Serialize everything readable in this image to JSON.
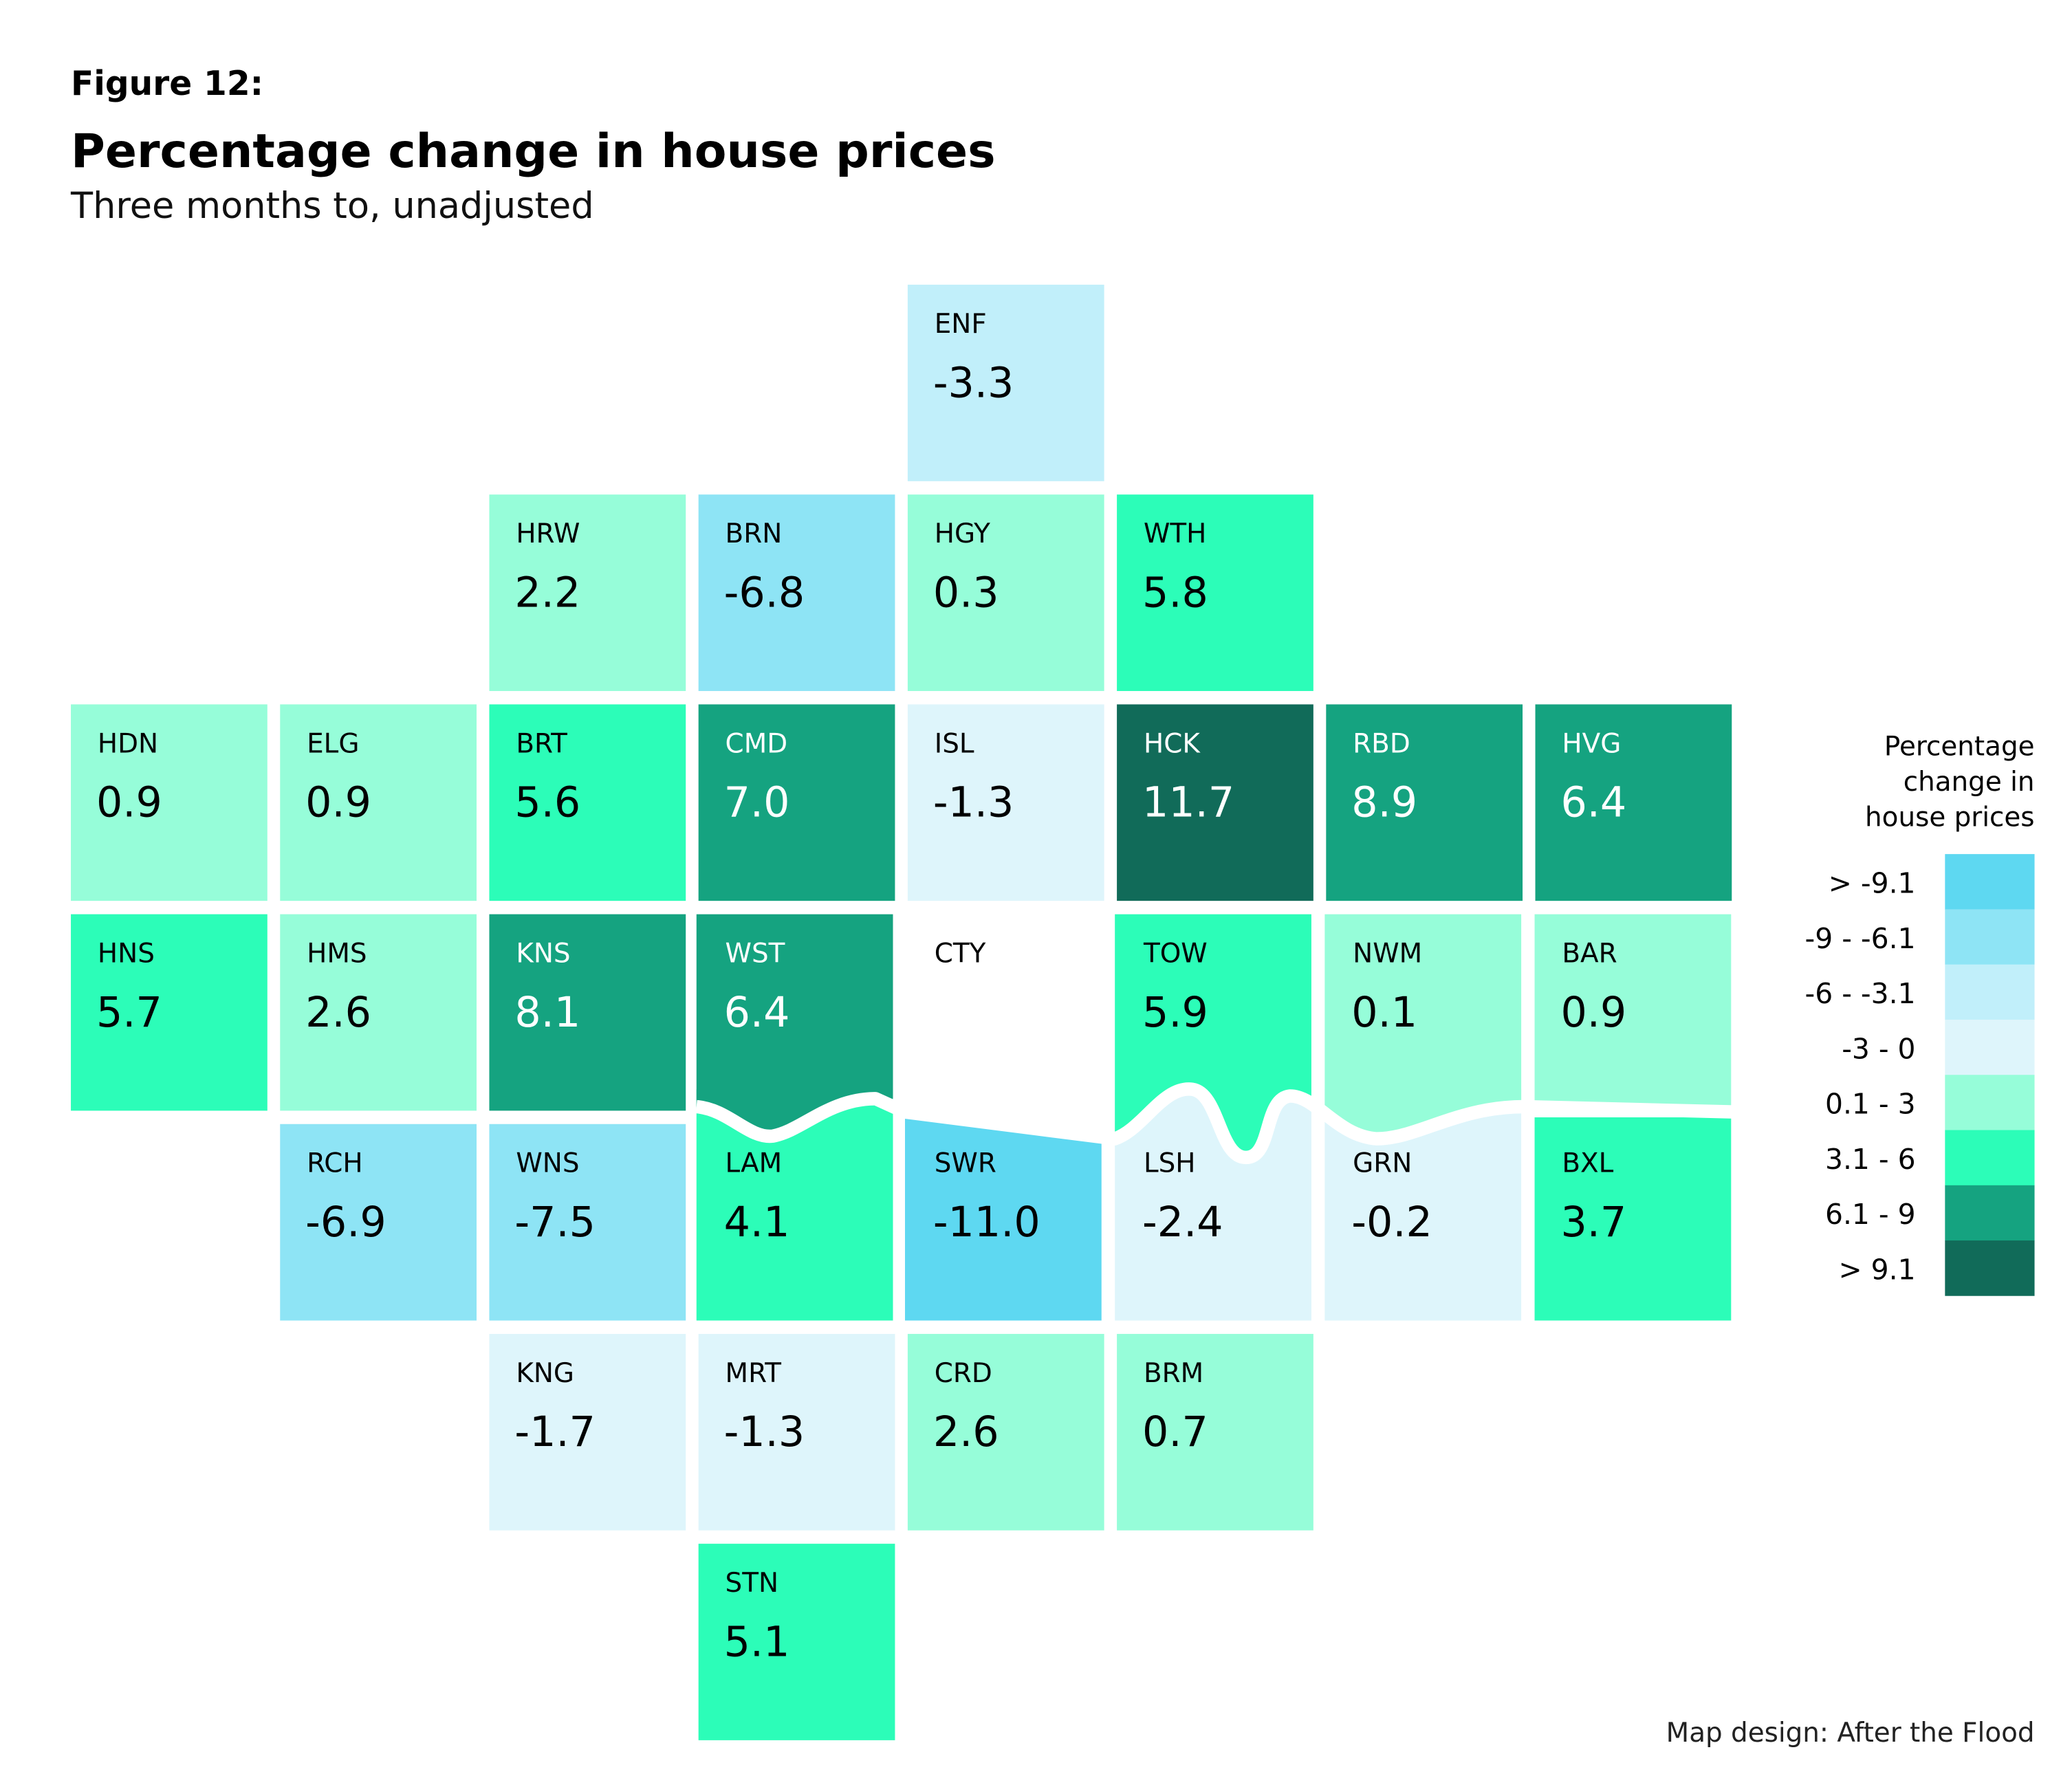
{
  "figure_label": "Figure 12:",
  "title": "Percentage change in house prices",
  "subtitle": "Three months to, unadjusted",
  "credit": "Map design: After the Flood",
  "chart_data": {
    "type": "tile-map",
    "tiles": [
      {
        "code": "ENF",
        "value": "-3.3",
        "row": 0,
        "col": 4
      },
      {
        "code": "HRW",
        "value": "2.2",
        "row": 1,
        "col": 2
      },
      {
        "code": "BRN",
        "value": "-6.8",
        "row": 1,
        "col": 3
      },
      {
        "code": "HGY",
        "value": "0.3",
        "row": 1,
        "col": 4
      },
      {
        "code": "WTH",
        "value": "5.8",
        "row": 1,
        "col": 5
      },
      {
        "code": "HDN",
        "value": "0.9",
        "row": 2,
        "col": 0
      },
      {
        "code": "ELG",
        "value": "0.9",
        "row": 2,
        "col": 1
      },
      {
        "code": "BRT",
        "value": "5.6",
        "row": 2,
        "col": 2
      },
      {
        "code": "CMD",
        "value": "7.0",
        "row": 2,
        "col": 3
      },
      {
        "code": "ISL",
        "value": "-1.3",
        "row": 2,
        "col": 4
      },
      {
        "code": "HCK",
        "value": "11.7",
        "row": 2,
        "col": 5
      },
      {
        "code": "RBD",
        "value": "8.9",
        "row": 2,
        "col": 6
      },
      {
        "code": "HVG",
        "value": "6.4",
        "row": 2,
        "col": 7
      },
      {
        "code": "HNS",
        "value": "5.7",
        "row": 3,
        "col": 0
      },
      {
        "code": "HMS",
        "value": "2.6",
        "row": 3,
        "col": 1
      },
      {
        "code": "KNS",
        "value": "8.1",
        "row": 3,
        "col": 2
      },
      {
        "code": "WST",
        "value": "6.4",
        "row": 3,
        "col": 3
      },
      {
        "code": "CTY",
        "value": null,
        "row": 3,
        "col": 4
      },
      {
        "code": "TOW",
        "value": "5.9",
        "row": 3,
        "col": 5
      },
      {
        "code": "NWM",
        "value": "0.1",
        "row": 3,
        "col": 6
      },
      {
        "code": "BAR",
        "value": "0.9",
        "row": 3,
        "col": 7
      },
      {
        "code": "RCH",
        "value": "-6.9",
        "row": 4,
        "col": 1
      },
      {
        "code": "WNS",
        "value": "-7.5",
        "row": 4,
        "col": 2
      },
      {
        "code": "LAM",
        "value": "4.1",
        "row": 4,
        "col": 3
      },
      {
        "code": "SWR",
        "value": "-11.0",
        "row": 4,
        "col": 4
      },
      {
        "code": "LSH",
        "value": "-2.4",
        "row": 4,
        "col": 5
      },
      {
        "code": "GRN",
        "value": "-0.2",
        "row": 4,
        "col": 6
      },
      {
        "code": "BXL",
        "value": "3.7",
        "row": 4,
        "col": 7
      },
      {
        "code": "KNG",
        "value": "-1.7",
        "row": 5,
        "col": 2
      },
      {
        "code": "MRT",
        "value": "-1.3",
        "row": 5,
        "col": 3
      },
      {
        "code": "CRD",
        "value": "2.6",
        "row": 5,
        "col": 4
      },
      {
        "code": "BRM",
        "value": "0.7",
        "row": 5,
        "col": 5
      },
      {
        "code": "STN",
        "value": "5.1",
        "row": 6,
        "col": 3
      }
    ],
    "legend": {
      "title_lines": [
        "Percentage",
        "change in",
        "house prices"
      ],
      "bins": [
        {
          "label": "> -9.1",
          "min": -99,
          "max": -9.05,
          "color": "#5ed8f1"
        },
        {
          "label": "-9 - -6.1",
          "min": -9.05,
          "max": -6.05,
          "color": "#8ee4f5"
        },
        {
          "label": "-6 - -3.1",
          "min": -6.05,
          "max": -3.05,
          "color": "#c1effa"
        },
        {
          "label": "-3 - 0",
          "min": -3.05,
          "max": 0.05,
          "color": "#def5fb"
        },
        {
          "label": "0.1 - 3",
          "min": 0.05,
          "max": 3.05,
          "color": "#96fdd9"
        },
        {
          "label": "3.1 - 6",
          "min": 3.05,
          "max": 6.05,
          "color": "#2cfdb8"
        },
        {
          "label": "6.1 - 9",
          "min": 6.05,
          "max": 9.05,
          "color": "#15a380"
        },
        {
          "label": "> 9.1",
          "min": 9.05,
          "max": 99,
          "color": "#116b59"
        }
      ]
    }
  }
}
